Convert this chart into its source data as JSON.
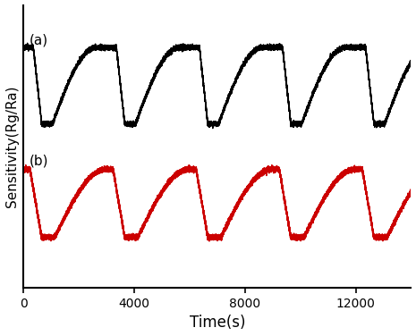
{
  "title": "",
  "xlabel": "Time(s)",
  "ylabel": "Sensitivity(Rg/Ra)",
  "xlim": [
    0,
    14000
  ],
  "ylim": [
    0,
    10
  ],
  "xticks": [
    0,
    4000,
    8000,
    12000
  ],
  "curve_a_color": "#000000",
  "curve_b_color": "#cc0000",
  "label_a": "(a)",
  "label_b": "(b)",
  "figsize": [
    4.65,
    3.76
  ],
  "dpi": 100,
  "period": 3000,
  "curve_a_high": 8.5,
  "curve_a_low": 5.8,
  "curve_b_high": 4.2,
  "curve_b_low": 1.8
}
